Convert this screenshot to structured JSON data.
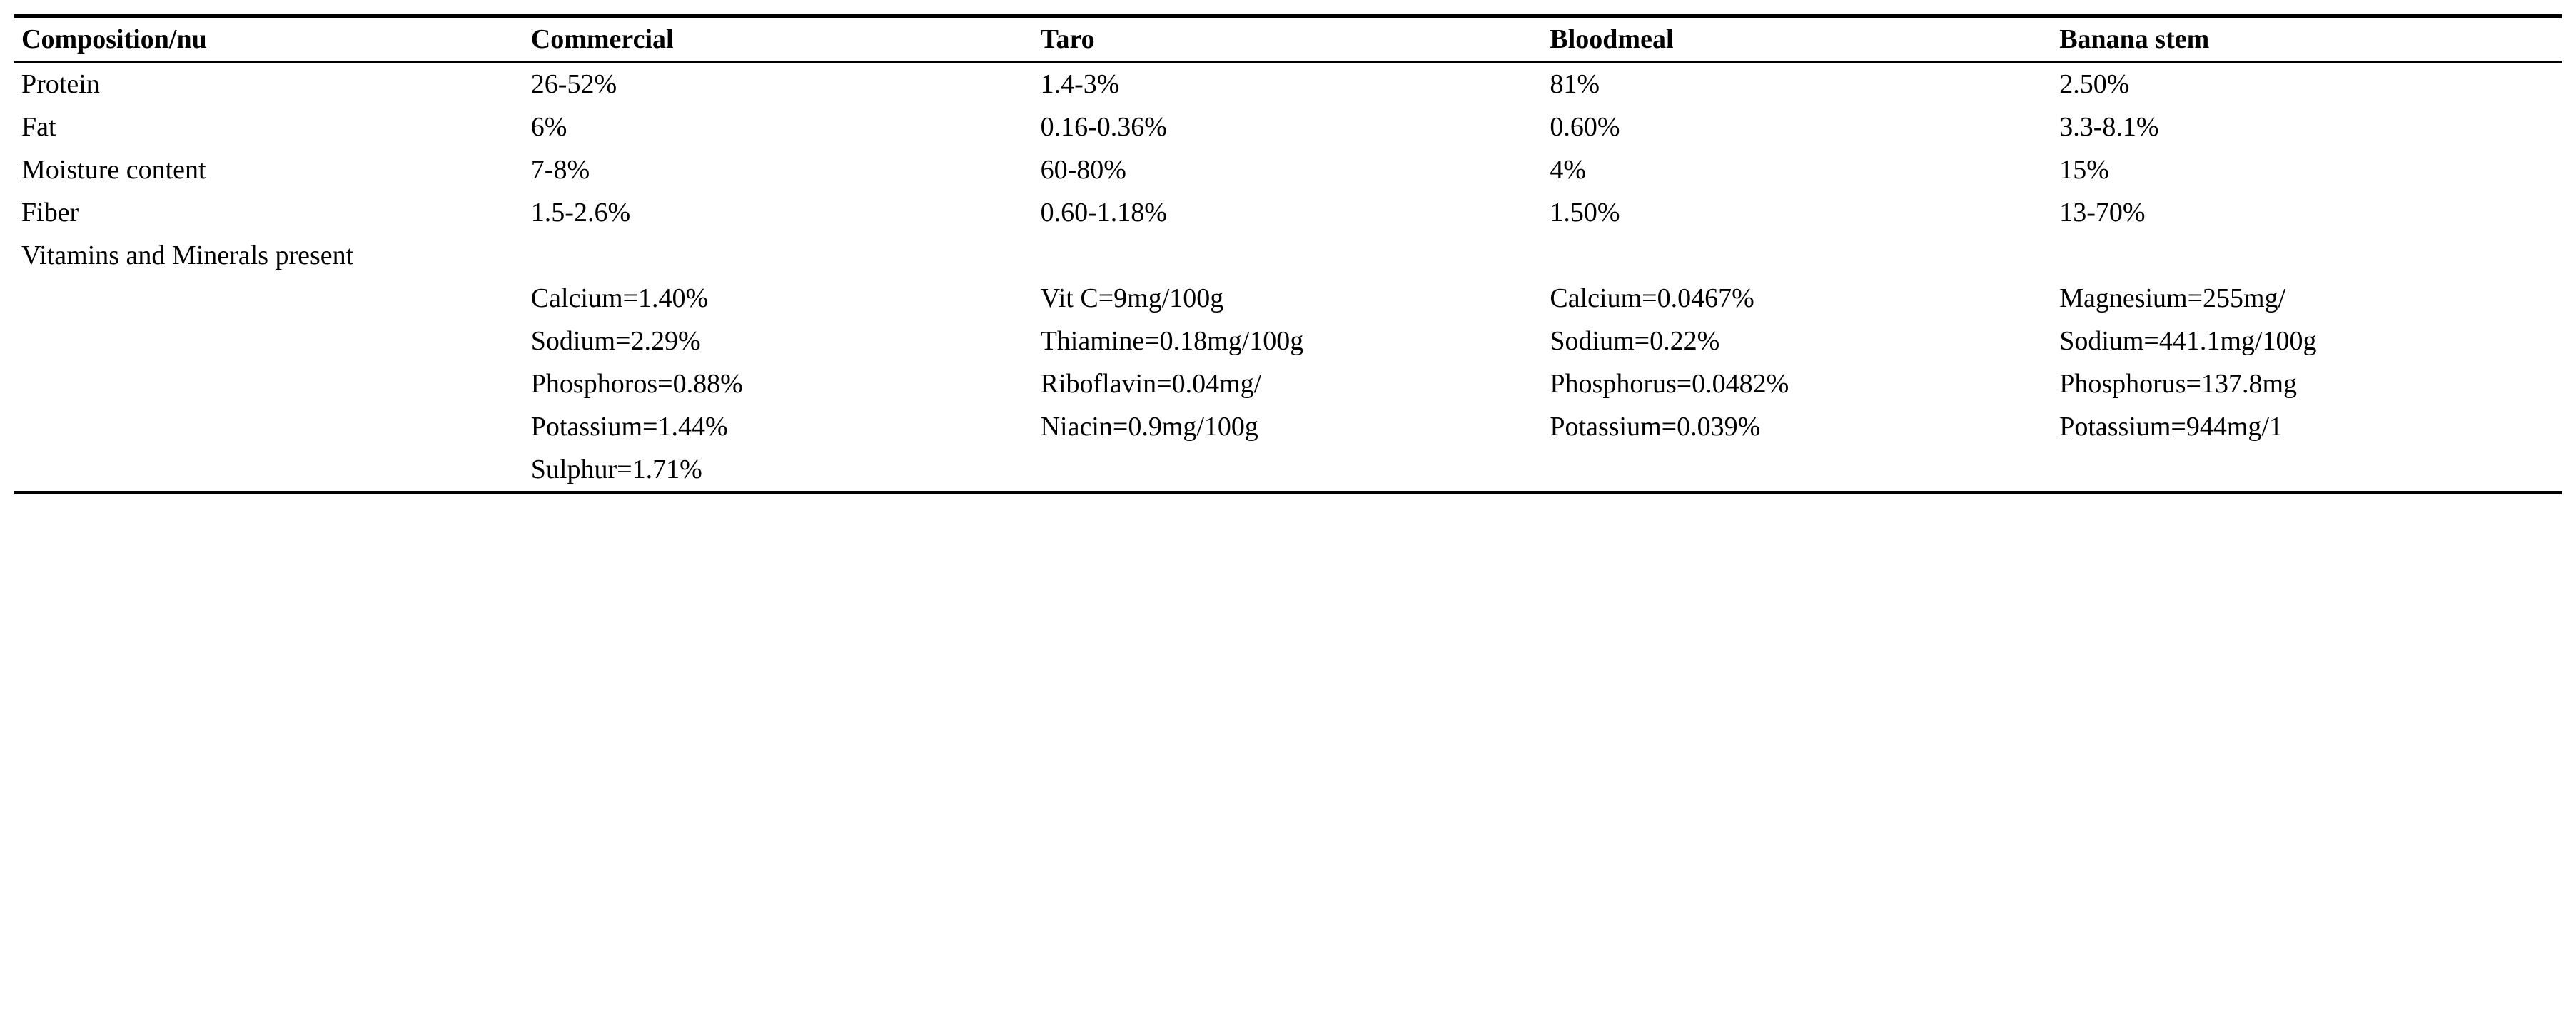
{
  "columns": {
    "c0": "Composition/nu",
    "c1": "Commercial",
    "c2": "Taro",
    "c3": "Bloodmeal",
    "c4": "Banana stem"
  },
  "rows": {
    "protein": {
      "label": "Protein",
      "c1": "26-52%",
      "c2": "1.4-3%",
      "c3": "81%",
      "c4": "2.50%"
    },
    "fat": {
      "label": "Fat",
      "c1": "6%",
      "c2": "0.16-0.36%",
      "c3": "0.60%",
      "c4": "3.3-8.1%"
    },
    "moisture": {
      "label": "Moisture content",
      "c1": "7-8%",
      "c2": "60-80%",
      "c3": "4%",
      "c4": "15%"
    },
    "fiber": {
      "label": "Fiber",
      "c1": "1.5-2.6%",
      "c2": "0.60-1.18%",
      "c3": "1.50%",
      "c4": "13-70%"
    }
  },
  "vitamins_label": "Vitamins and Minerals present",
  "vitamins": {
    "r1": {
      "c1": "Calcium=1.40%",
      "c2": "Vit C=9mg/100g",
      "c3": "Calcium=0.0467%",
      "c4": "Magnesium=255mg/"
    },
    "r2": {
      "c1": "Sodium=2.29%",
      "c2": "Thiamine=0.18mg/100g",
      "c3": "Sodium=0.22%",
      "c4": "Sodium=441.1mg/100g"
    },
    "r3": {
      "c1": "Phosphoros=0.88%",
      "c2": "Riboflavin=0.04mg/",
      "c3": "Phosphorus=0.0482%",
      "c4": "Phosphorus=137.8mg"
    },
    "r4": {
      "c1": "Potassium=1.44%",
      "c2": "Niacin=0.9mg/100g",
      "c3": "Potassium=0.039%",
      "c4": "Potassium=944mg/1"
    },
    "r5": {
      "c1": "Sulphur=1.71%",
      "c2": "",
      "c3": "",
      "c4": ""
    }
  }
}
